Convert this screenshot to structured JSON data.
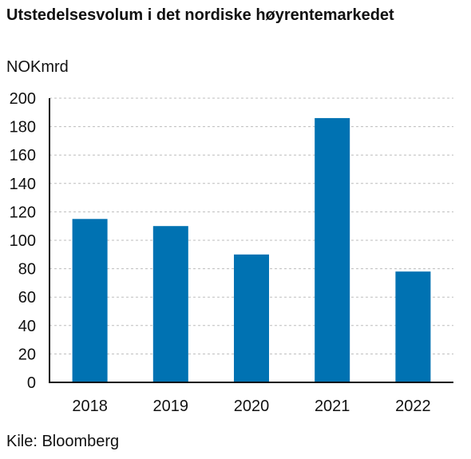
{
  "chart_data": {
    "type": "bar",
    "title": "Utstedelsesvolum i det nordiske høyrentemarkedet",
    "ylabel": "NOKmrd",
    "xlabel": "",
    "categories": [
      "2018",
      "2019",
      "2020",
      "2021",
      "2022"
    ],
    "values": [
      115,
      110,
      90,
      186,
      78
    ],
    "ylim": [
      0,
      200
    ],
    "yticks": [
      0,
      20,
      40,
      60,
      80,
      100,
      120,
      140,
      160,
      180,
      200
    ],
    "grid": true,
    "bar_color": "#0072b2",
    "grid_color": "#bdbdbd"
  },
  "source": "Kile: Bloomberg"
}
